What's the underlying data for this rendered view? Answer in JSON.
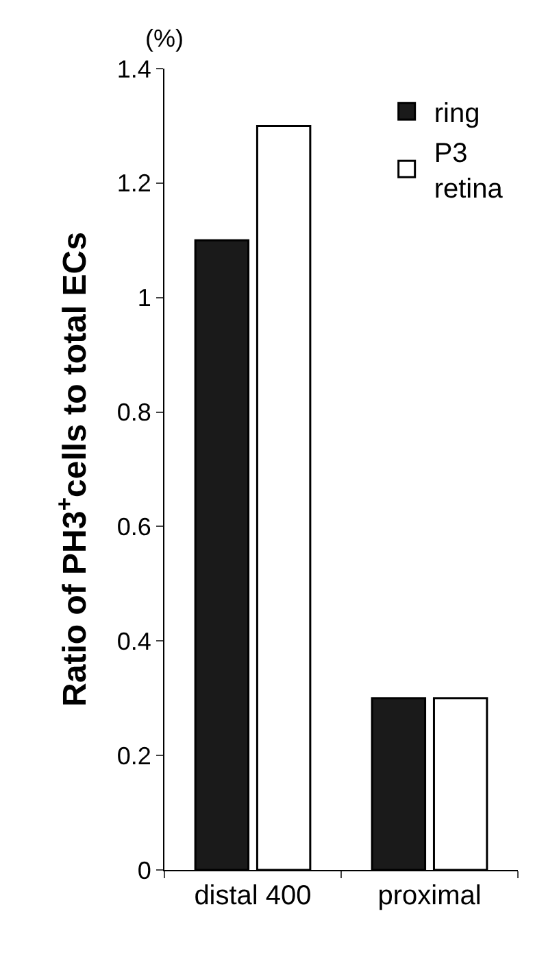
{
  "chart_data": {
    "type": "bar",
    "ylabel": "Ratio of PH3$^{+}$cells to total ECs",
    "annotations": [
      "(%)"
    ],
    "categories": [
      "distal 400",
      "proximal"
    ],
    "series": [
      {
        "name": "ring",
        "color": "#1a1a1a",
        "values": [
          1.1,
          0.3
        ]
      },
      {
        "name": "P3\nretina",
        "color": "#ffffff",
        "values": [
          1.3,
          0.3
        ]
      }
    ],
    "ylim": [
      0,
      1.4
    ],
    "yticks": [
      0,
      0.2,
      0.4,
      0.6,
      0.8,
      1,
      1.2,
      1.4
    ],
    "legend": "top right"
  }
}
